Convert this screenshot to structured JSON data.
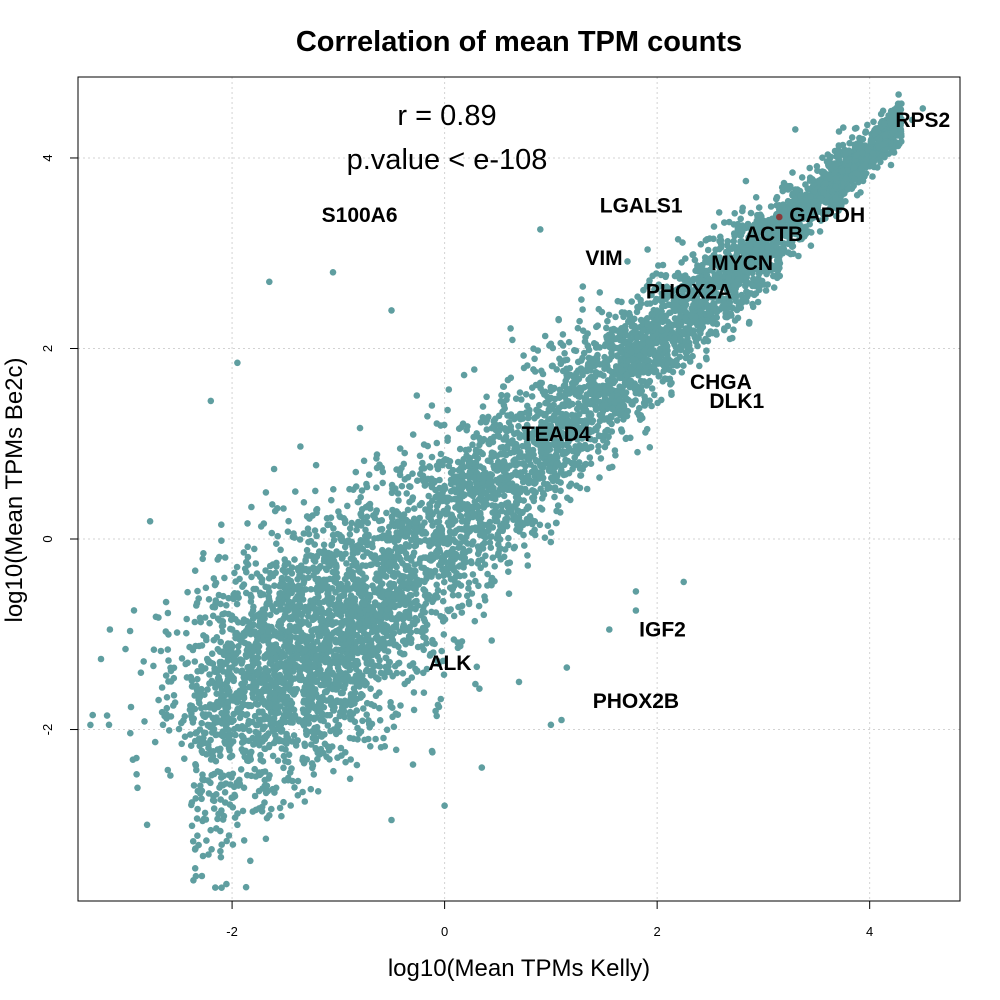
{
  "chart_data": {
    "type": "scatter",
    "title": "Correlation of mean TPM counts",
    "xlabel": "log10(Mean TPMs Kelly)",
    "ylabel": "log10(Mean TPMs Be2c)",
    "xlim": [
      -3.45,
      4.85
    ],
    "ylim": [
      -3.8,
      4.85
    ],
    "xticks": [
      -2,
      0,
      2,
      4
    ],
    "yticks": [
      -2,
      0,
      2,
      4
    ],
    "grid": true,
    "point_color": "#5f9ea0",
    "highlight_color": "#8b3a3a",
    "annotations": [
      {
        "text": "r = 0.89",
        "x": 0.0,
        "y": 4.5
      },
      {
        "text": "p.value < e-108",
        "x": 0.0,
        "y": 4.05
      }
    ],
    "labeled_genes": [
      {
        "name": "RPS2",
        "x": 4.5,
        "y": 4.4
      },
      {
        "name": "GAPDH",
        "x": 3.6,
        "y": 3.4
      },
      {
        "name": "ACTB",
        "x": 3.1,
        "y": 3.2
      },
      {
        "name": "MYCN",
        "x": 2.8,
        "y": 2.9
      },
      {
        "name": "PHOX2A",
        "x": 2.3,
        "y": 2.6
      },
      {
        "name": "LGALS1",
        "x": 1.85,
        "y": 3.5
      },
      {
        "name": "VIM",
        "x": 1.5,
        "y": 2.95
      },
      {
        "name": "S100A6",
        "x": -0.8,
        "y": 3.4
      },
      {
        "name": "CHGA",
        "x": 2.6,
        "y": 1.65
      },
      {
        "name": "DLK1",
        "x": 2.75,
        "y": 1.45
      },
      {
        "name": "TEAD4",
        "x": 1.05,
        "y": 1.1
      },
      {
        "name": "IGF2",
        "x": 2.05,
        "y": -0.95
      },
      {
        "name": "ALK",
        "x": 0.05,
        "y": -1.3
      },
      {
        "name": "PHOX2B",
        "x": 1.8,
        "y": -1.7
      }
    ],
    "notable_points": [
      {
        "x": 4.5,
        "y": 4.52
      },
      {
        "x": 4.4,
        "y": 4.4
      },
      {
        "x": 3.3,
        "y": 4.3
      },
      {
        "x": 3.2,
        "y": 3.45
      },
      {
        "x": 2.95,
        "y": 3.25
      },
      {
        "x": 0.9,
        "y": 3.25
      },
      {
        "x": -1.05,
        "y": 2.8
      },
      {
        "x": -1.65,
        "y": 2.7
      },
      {
        "x": 1.3,
        "y": 2.65
      },
      {
        "x": -0.5,
        "y": 2.4
      },
      {
        "x": -1.95,
        "y": 1.85
      },
      {
        "x": -2.2,
        "y": 1.45
      },
      {
        "x": 2.25,
        "y": -0.45
      },
      {
        "x": 1.8,
        "y": -0.75
      },
      {
        "x": 1.8,
        "y": -0.55
      },
      {
        "x": 1.55,
        "y": -0.95
      },
      {
        "x": 1.15,
        "y": -1.35
      },
      {
        "x": 1.1,
        "y": -1.9
      },
      {
        "x": 1.0,
        "y": -1.95
      },
      {
        "x": 0.7,
        "y": -1.5
      },
      {
        "x": -0.5,
        "y": -2.95
      },
      {
        "x": 0.0,
        "y": -2.8
      },
      {
        "x": 0.35,
        "y": -2.4
      },
      {
        "x": -1.95,
        "y": -3.0
      },
      {
        "x": -2.8,
        "y": -3.0
      },
      {
        "x": -3.15,
        "y": -0.95
      },
      {
        "x": -1.65,
        "y": -2.9
      },
      {
        "x": -2.9,
        "y": -2.3
      },
      {
        "x": -2.65,
        "y": -1.95
      }
    ]
  }
}
